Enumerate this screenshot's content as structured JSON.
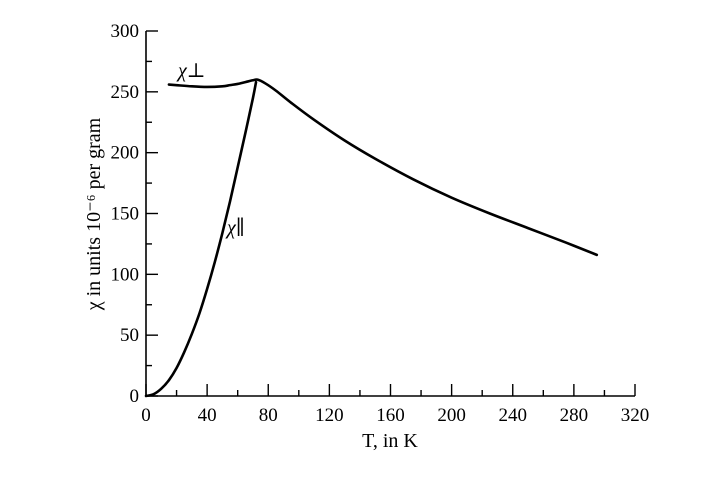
{
  "chart_data": {
    "type": "line",
    "title": "",
    "xlabel": "T, in K",
    "ylabel": "χ in units 10⁻⁶ per gram",
    "xlim": [
      0,
      320
    ],
    "ylim": [
      0,
      300
    ],
    "x_ticks": [
      "0",
      "40",
      "80",
      "120",
      "160",
      "200",
      "240",
      "280",
      "320"
    ],
    "y_ticks": [
      "0",
      "50",
      "100",
      "150",
      "200",
      "250",
      "300"
    ],
    "grid": false,
    "legend": "none",
    "series": [
      {
        "name": "χ⊥",
        "x": [
          15,
          20,
          30,
          40,
          50,
          55,
          60,
          65,
          70,
          73,
          78,
          85,
          95,
          110,
          130,
          150,
          175,
          200,
          225,
          250,
          275,
          295
        ],
        "y": [
          256,
          255.5,
          254.5,
          254,
          254.5,
          255.5,
          256.5,
          258,
          259.5,
          260,
          257,
          251,
          241,
          227,
          210,
          195,
          178,
          163,
          150,
          138,
          126,
          116
        ]
      },
      {
        "name": "χ∥",
        "x": [
          0,
          5,
          10,
          15,
          20,
          25,
          30,
          35,
          40,
          45,
          50,
          55,
          60,
          65,
          70,
          72
        ],
        "y": [
          0,
          1.5,
          6,
          13,
          23,
          36,
          51,
          68,
          88,
          110,
          134,
          160,
          188,
          216,
          245,
          258
        ]
      }
    ]
  }
}
